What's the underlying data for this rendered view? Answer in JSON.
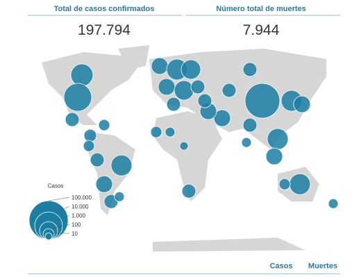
{
  "stats": [
    {
      "label": "Total de casos confirmados",
      "value": "197.794"
    },
    {
      "label": "Número total de muertes",
      "value": "7.944"
    }
  ],
  "legend": {
    "title": "Casos",
    "labels": [
      "100.000",
      "10.000",
      "1.000",
      "100",
      "10"
    ]
  },
  "tabs": [
    "Casos",
    "Muertes"
  ]
}
